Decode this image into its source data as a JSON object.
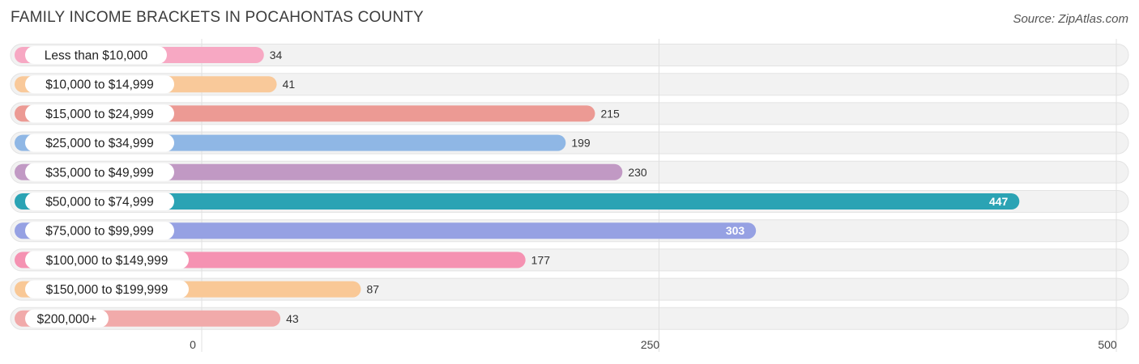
{
  "title": "FAMILY INCOME BRACKETS IN POCAHONTAS COUNTY",
  "source": "Source: ZipAtlas.com",
  "colors": {
    "track": "#f2f2f2",
    "track_border": "#e3e3e3",
    "grid": "#e0e0e0",
    "label_text": "#222222",
    "value_text": "#333333",
    "value_text_inside": "#ffffff"
  },
  "chart_data": {
    "type": "bar",
    "orientation": "horizontal",
    "categories": [
      "Less than $10,000",
      "$10,000 to $14,999",
      "$15,000 to $24,999",
      "$25,000 to $34,999",
      "$35,000 to $49,999",
      "$50,000 to $74,999",
      "$75,000 to $99,999",
      "$100,000 to $149,999",
      "$150,000 to $199,999",
      "$200,000+"
    ],
    "values": [
      34,
      41,
      215,
      199,
      230,
      447,
      303,
      177,
      87,
      43
    ],
    "value_labels": [
      "34",
      "41",
      "215",
      "199",
      "230",
      "447",
      "303",
      "177",
      "87",
      "43"
    ],
    "bar_colors": [
      "#f7a8c3",
      "#f9c99a",
      "#ec9a94",
      "#8fb7e5",
      "#c199c4",
      "#2ba3b4",
      "#96a1e3",
      "#f592b2",
      "#f9c896",
      "#f1aaaa"
    ],
    "xlim": [
      0,
      500
    ],
    "xticks": [
      0,
      250,
      500
    ],
    "xtick_labels": [
      "0",
      "250",
      "500"
    ],
    "grid": true,
    "legend": "none"
  }
}
